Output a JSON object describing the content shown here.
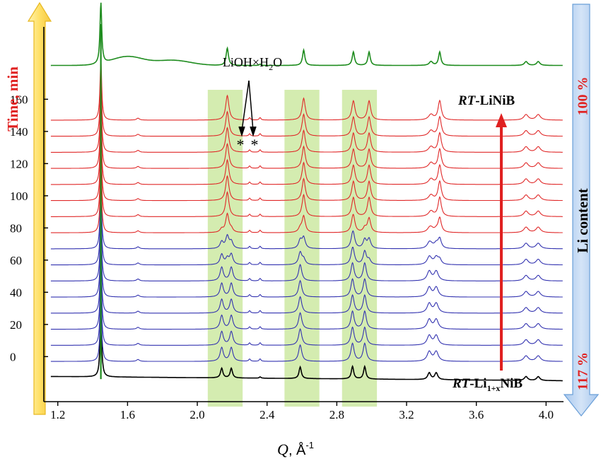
{
  "chart_data": {
    "type": "line",
    "title": "",
    "xlabel": {
      "symbol": "Q",
      "rest": ", Å",
      "sup": "-1"
    },
    "ylabel_left": "Time, min",
    "ylabel_right": "Li content",
    "xlim": [
      1.12,
      4.1
    ],
    "x_ticks": [
      1.2,
      1.6,
      2.0,
      2.4,
      2.8,
      3.2,
      3.6,
      4.0
    ],
    "x_tick_labels": [
      "1.2",
      "1.6",
      "2.0",
      "2.4",
      "2.8",
      "3.2",
      "3.6",
      "4.0"
    ],
    "y_ticks": [
      0,
      20,
      40,
      60,
      80,
      100,
      120,
      140,
      160
    ],
    "y_tick_labels": [
      "0",
      "20",
      "40",
      "60",
      "80",
      "100",
      "120",
      "140",
      "160"
    ],
    "ylim": [
      -28,
      205
    ],
    "series_times_min": [
      10,
      20,
      30,
      40,
      50,
      60,
      70,
      80,
      90,
      100,
      110,
      120,
      130,
      140,
      150,
      160
    ],
    "series_colors": {
      "start": "#000000",
      "lithiated": "#3333b0",
      "delithiated": "#e02828",
      "final": "#1e8c1e"
    },
    "bottom_curve_offset": -15,
    "top_curve_offset": 195,
    "highlight_bands": [
      [
        2.06,
        2.26
      ],
      [
        2.5,
        2.7
      ],
      [
        2.83,
        3.03
      ]
    ],
    "annotations": {
      "impurity_label": {
        "main": "LiOH×H",
        "sub": "2",
        "tail": "O"
      },
      "asterisks": [
        "*",
        "*"
      ],
      "top_phase": {
        "italic": "RT",
        "rest": "-LiNiB"
      },
      "bottom_phase": {
        "italic": "RT",
        "mid": "-Li",
        "sub": "1+x",
        "rest": "NiB"
      },
      "right_top_percent": "100 %",
      "right_bottom_percent": "117 %"
    },
    "peaks_Q": [
      1.45,
      1.66,
      2.14,
      2.19,
      2.36,
      2.59,
      2.61,
      2.89,
      2.97,
      3.34,
      3.39,
      3.88,
      3.95
    ]
  }
}
